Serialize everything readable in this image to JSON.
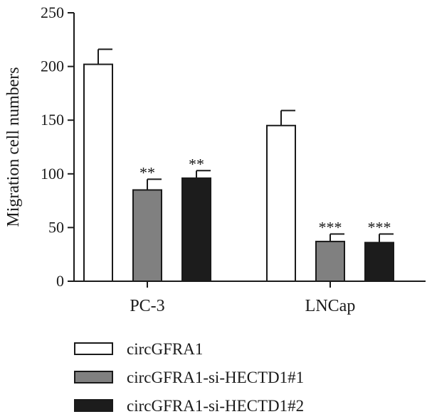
{
  "chart_data": {
    "type": "bar",
    "title": "",
    "xlabel": "",
    "ylabel": "Migration cell numbers",
    "ylim": [
      0,
      250
    ],
    "yticks": [
      0,
      50,
      100,
      150,
      200,
      250
    ],
    "categories": [
      "PC-3",
      "LNCap"
    ],
    "series": [
      {
        "name": "circGFRA1",
        "values": [
          202,
          145
        ],
        "errors": [
          14,
          14
        ],
        "significance": [
          "",
          ""
        ],
        "color": "#ffffff"
      },
      {
        "name": "circGFRA1-si-HECTD1#1",
        "values": [
          85,
          37
        ],
        "errors": [
          10,
          7
        ],
        "significance": [
          "**",
          "***"
        ],
        "color": "#808080"
      },
      {
        "name": "circGFRA1-si-HECTD1#2",
        "values": [
          96,
          36
        ],
        "errors": [
          7,
          8
        ],
        "significance": [
          "**",
          "***"
        ],
        "color": "#1c1c1c"
      }
    ],
    "grid": false,
    "legend_position": "bottom"
  }
}
